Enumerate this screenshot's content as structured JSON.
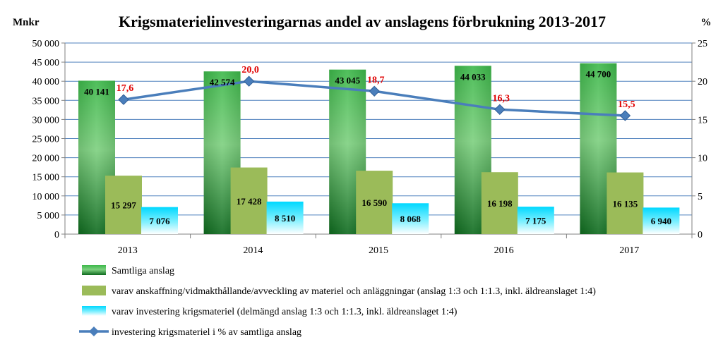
{
  "chart_data": {
    "type": "bar",
    "title": "Krigsmaterielinvesteringarnas andel av anslagens förbrukning 2013-2017",
    "ylabel_left": "Mnkr",
    "ylabel_right": "%",
    "categories": [
      "2013",
      "2014",
      "2015",
      "2016",
      "2017"
    ],
    "ylim_left": [
      0,
      50000
    ],
    "ylim_right": [
      0,
      25
    ],
    "yticks_left": [
      "0",
      "5 000",
      "10 000",
      "15 000",
      "20 000",
      "25 000",
      "30 000",
      "35 000",
      "40 000",
      "45 000",
      "50 000"
    ],
    "yticks_right": [
      "0",
      "5",
      "10",
      "15",
      "20",
      "25"
    ],
    "grid": true,
    "legend_position": "bottom",
    "series": [
      {
        "name": "Samtliga anslag",
        "type": "bar",
        "axis": "left",
        "color": "#3fae49",
        "values": [
          40141,
          42574,
          43045,
          44033,
          44700
        ],
        "labels": [
          "40 141",
          "42 574",
          "43 045",
          "44 033",
          "44 700"
        ]
      },
      {
        "name": "varav anskaffning/vidmakthållande/avveckling av materiel och anläggningar (anslag 1:3 och 1:1.3, inkl. äldreanslaget 1:4)",
        "type": "bar",
        "axis": "left",
        "color": "#9bbb59",
        "values": [
          15297,
          17428,
          16590,
          16198,
          16135
        ],
        "labels": [
          "15 297",
          "17 428",
          "16 590",
          "16 198",
          "16 135"
        ]
      },
      {
        "name": "varav investering krigsmateriel (delmängd anslag 1:3 och 1:1.3, inkl. äldreanslaget 1:4)",
        "type": "bar",
        "axis": "left",
        "color": "#00e5ff",
        "values": [
          7076,
          8510,
          8068,
          7175,
          6940
        ],
        "labels": [
          "7 076",
          "8 510",
          "8 068",
          "7 175",
          "6 940"
        ]
      },
      {
        "name": "investering krigsmateriel i % av samtliga anslag",
        "type": "line",
        "axis": "right",
        "color": "#4a7ebb",
        "values": [
          17.6,
          20.0,
          18.7,
          16.3,
          15.5
        ],
        "labels": [
          "17,6",
          "20,0",
          "18,7",
          "16,3",
          "15,5"
        ]
      }
    ]
  }
}
